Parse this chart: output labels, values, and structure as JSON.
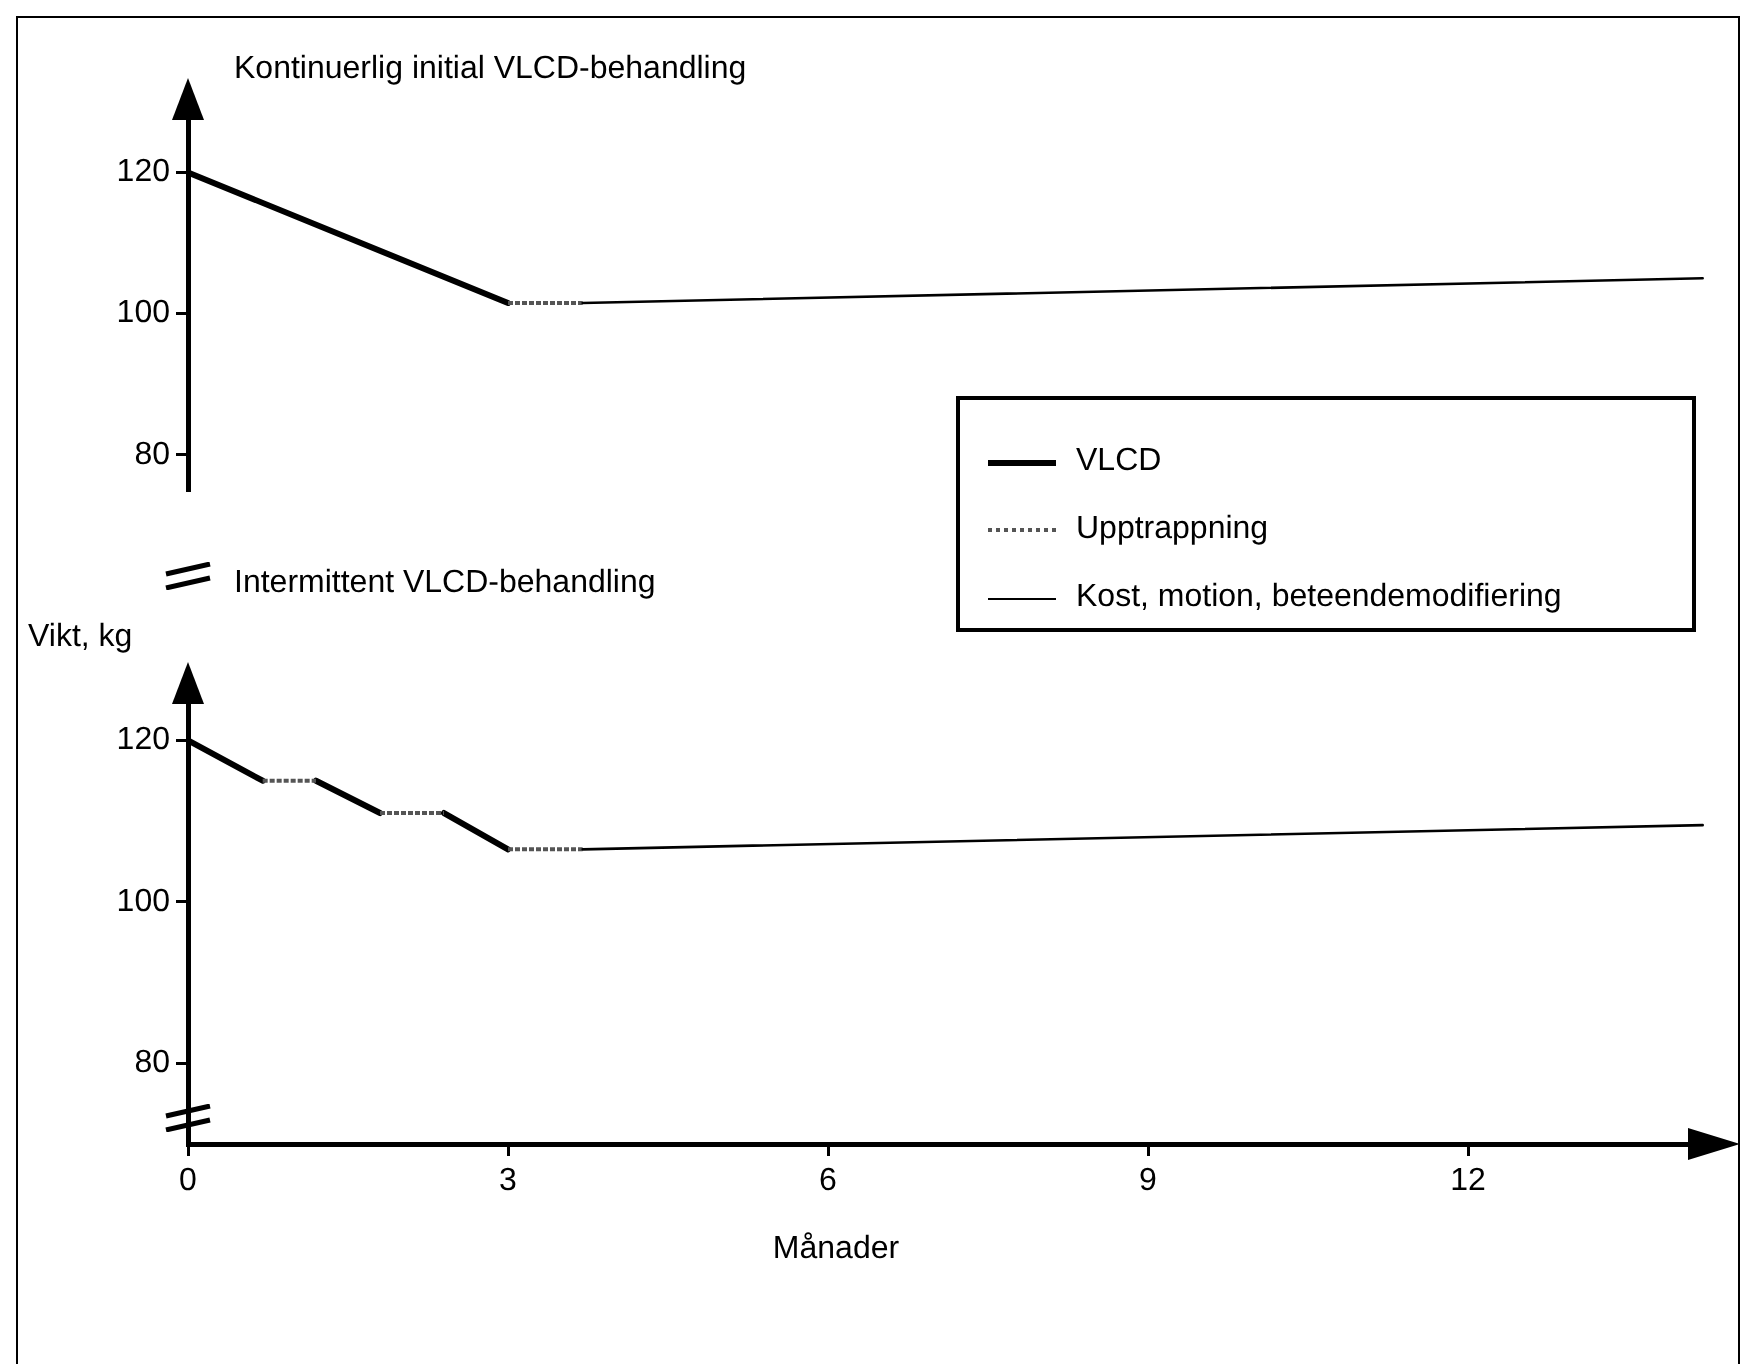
{
  "chart_data": [
    {
      "type": "line",
      "title": "Kontinuerlig initial VLCD-behandling",
      "xticks": [
        0,
        3,
        6,
        9,
        12
      ],
      "ylim": [
        75,
        128
      ],
      "yticks": [
        80,
        100,
        120
      ],
      "tick_labels": "y",
      "grid": false,
      "marker": "none",
      "legend": "bottom right",
      "series": [
        {
          "name": "VLCD",
          "color": "#000000",
          "line_style": "solid",
          "x": [
            0,
            3
          ],
          "values": [
            120,
            101.5
          ]
        },
        {
          "name": "Upptrappning",
          "color": "#555555",
          "line_style": "dotted",
          "x": [
            3,
            3.7
          ],
          "values": [
            101.5,
            101.5
          ]
        },
        {
          "name": "Kost, motion, beteendemodifiering",
          "color": "#000000",
          "line_style": "solid",
          "x": [
            3.7,
            14.2
          ],
          "values": [
            101.5,
            105
          ]
        }
      ]
    },
    {
      "type": "line",
      "title": "Intermittent VLCD-behandling",
      "ylabel": "Vikt, kg",
      "xlabel": "Månader",
      "xlim": [
        0,
        14.4
      ],
      "xticks": [
        0,
        3,
        6,
        9,
        12
      ],
      "ylim": [
        70,
        125
      ],
      "yticks": [
        80,
        100,
        120
      ],
      "grid": false,
      "marker": "none",
      "series": [
        {
          "color": "#000000",
          "line_style": "solid",
          "x": [
            0,
            0.7,
            0.95,
            1.2,
            1.8,
            2.1,
            2.4,
            3
          ],
          "values": [
            120,
            115,
            null,
            115,
            111,
            null,
            111,
            106.5
          ]
        },
        {
          "color": "#555555",
          "line_style": "dotted",
          "x": [
            0.7,
            1.2,
            1.5,
            1.8,
            2.4,
            2.7,
            3,
            3.7
          ],
          "values": [
            115,
            115,
            null,
            111,
            111,
            null,
            106.5,
            106.5
          ]
        },
        {
          "color": "#000000",
          "line_style": "solid",
          "x": [
            3.7,
            14.2
          ],
          "values": [
            106.5,
            109.5
          ]
        }
      ]
    }
  ]
}
